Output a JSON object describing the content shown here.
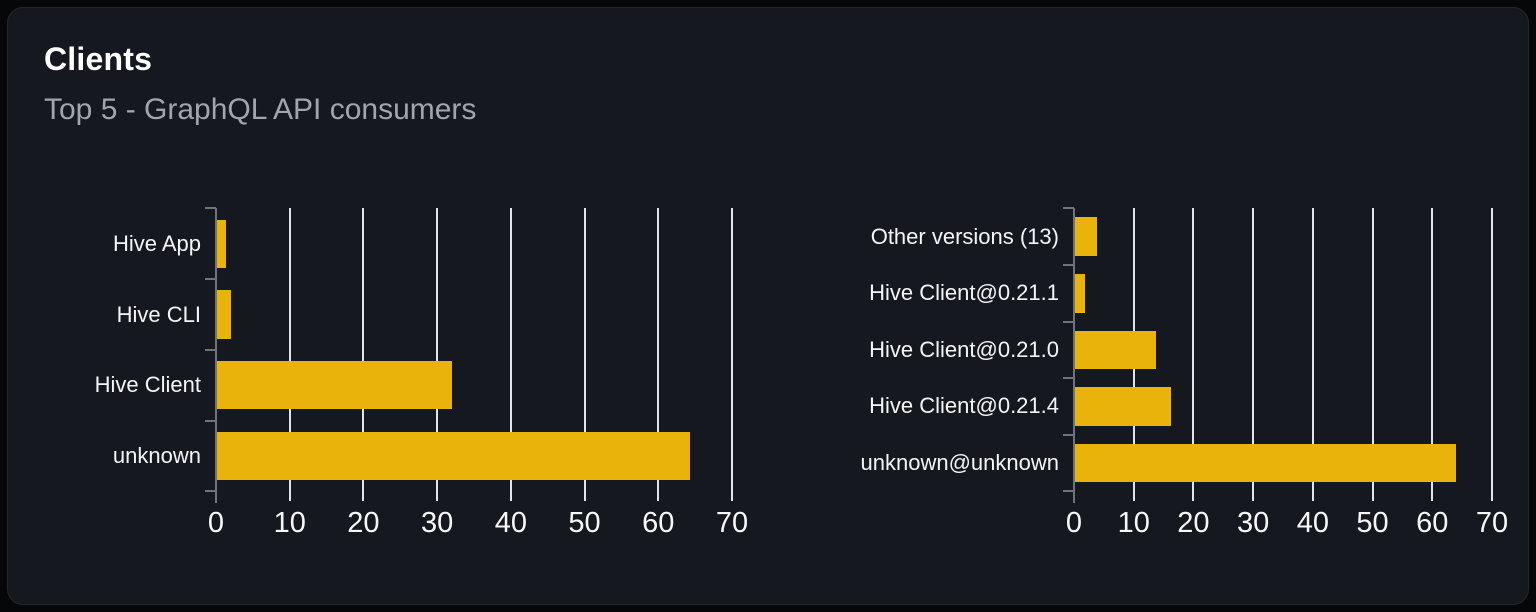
{
  "card": {
    "title": "Clients",
    "subtitle": "Top 5 - GraphQL API consumers"
  },
  "colors": {
    "bar": "#e9b30b",
    "grid": "#e3e4ea",
    "axis": "#6f737b",
    "category_label": "#f4f5f7",
    "tick_label": "#f7f8fa",
    "title": "#ffffff",
    "subtitle": "#a3a5ad",
    "card_bg": "#15181e",
    "page_bg": "#060709"
  },
  "chart_data": [
    {
      "type": "bar",
      "orientation": "horizontal",
      "name": "clients-by-name",
      "categories": [
        "Hive App",
        "Hive CLI",
        "Hive Client",
        "unknown"
      ],
      "values": [
        1.3,
        2.0,
        32.0,
        64.3
      ],
      "xlim": [
        0,
        70
      ],
      "xticks": [
        0,
        10,
        20,
        30,
        40,
        50,
        60,
        70
      ],
      "grid": true,
      "legend": false,
      "title": "",
      "xlabel": "",
      "ylabel": ""
    },
    {
      "type": "bar",
      "orientation": "horizontal",
      "name": "clients-by-version",
      "categories": [
        "Other versions (13)",
        "Hive Client@0.21.1",
        "Hive Client@0.21.0",
        "Hive Client@0.21.4",
        "unknown@unknown"
      ],
      "values": [
        3.8,
        1.8,
        13.7,
        16.3,
        64.0
      ],
      "xlim": [
        0,
        70
      ],
      "xticks": [
        0,
        10,
        20,
        30,
        40,
        50,
        60,
        70
      ],
      "grid": true,
      "legend": false,
      "title": "",
      "xlabel": "",
      "ylabel": ""
    }
  ]
}
